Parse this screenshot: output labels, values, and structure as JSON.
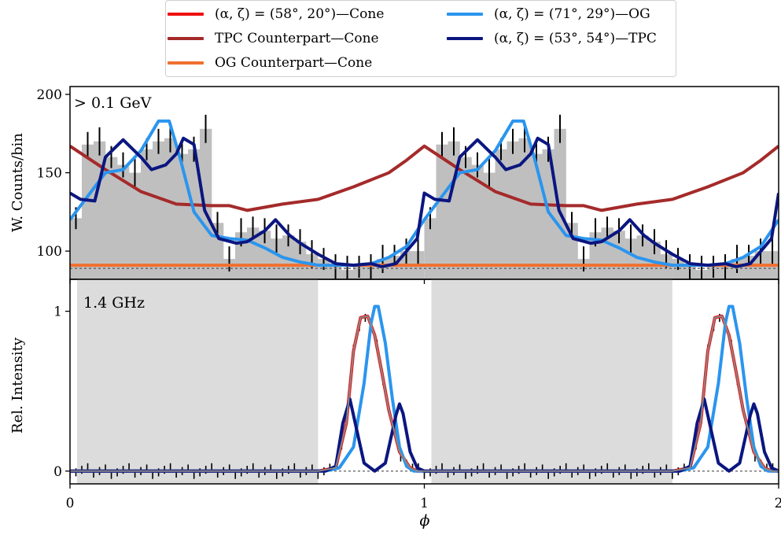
{
  "colors": {
    "cone": "#ee1111",
    "tpc_counterpart": "#a52a2a",
    "og_counterpart": "#f07030",
    "og": "#2b95ee",
    "tpc": "#0b1680",
    "histogram": "#bfbfbf",
    "shade": "#dcdcdc"
  },
  "legend": [
    {
      "label": "(α, ζ) = (58°, 20°)—Cone",
      "color": "#ee1111"
    },
    {
      "label": "(α, ζ) = (71°, 29°)—OG",
      "color": "#2b95ee"
    },
    {
      "label": "TPC Counterpart—Cone",
      "color": "#a52a2a"
    },
    {
      "label": "(α, ζ) = (53°, 54°)—TPC",
      "color": "#0b1680"
    },
    {
      "label": "OG Counterpart—Cone",
      "color": "#f07030"
    }
  ],
  "chart_data": [
    {
      "type": "bar",
      "annotation": "> 0.1 GeV",
      "ylabel": "W. Counts/bin",
      "xlim": [
        0,
        2
      ],
      "ylim": [
        82,
        205
      ],
      "yticks": [
        100,
        150,
        200
      ],
      "histogram": {
        "bin_width": 0.0333,
        "values": [
          121,
          168,
          170,
          160,
          155,
          150,
          165,
          170,
          172,
          162,
          165,
          178,
          118,
          95,
          112,
          115,
          113,
          108,
          110,
          106,
          98,
          95,
          90,
          88,
          90,
          90,
          95,
          97,
          100,
          100
        ]
      },
      "series": [
        {
          "name": "TPC Counterpart—Cone",
          "x": [
            0.0,
            0.1,
            0.2,
            0.3,
            0.4,
            0.45,
            0.5,
            0.6,
            0.7,
            0.8,
            0.9,
            0.95,
            1.0
          ],
          "y": [
            167,
            152,
            138,
            130,
            129,
            129,
            126,
            130,
            133,
            141,
            150,
            158,
            167
          ]
        },
        {
          "name": "OG Counterpart—Cone",
          "x": [
            0,
            2
          ],
          "y": [
            91,
            91
          ]
        },
        {
          "name": "(α, ζ) = (71°, 29°)—OG",
          "x": [
            0.0,
            0.05,
            0.1,
            0.15,
            0.2,
            0.25,
            0.28,
            0.31,
            0.35,
            0.4,
            0.45,
            0.5,
            0.55,
            0.6,
            0.65,
            0.7,
            0.75,
            0.8,
            0.85,
            0.9,
            0.95,
            1.0
          ],
          "y": [
            120,
            135,
            150,
            152,
            164,
            183,
            183,
            160,
            125,
            110,
            108,
            107,
            102,
            96,
            93,
            91,
            91,
            91,
            92,
            96,
            103,
            120
          ]
        },
        {
          "name": "(α, ζ) = (53°, 54°)—TPC",
          "x": [
            0.0,
            0.03,
            0.07,
            0.1,
            0.15,
            0.2,
            0.23,
            0.27,
            0.3,
            0.32,
            0.35,
            0.38,
            0.42,
            0.47,
            0.5,
            0.55,
            0.58,
            0.62,
            0.65,
            0.7,
            0.75,
            0.8,
            0.85,
            0.88,
            0.92,
            0.95,
            0.98,
            1.0
          ],
          "y": [
            137,
            133,
            132,
            160,
            171,
            160,
            152,
            155,
            162,
            172,
            168,
            126,
            108,
            105,
            106,
            113,
            120,
            110,
            105,
            98,
            92,
            91,
            92,
            90,
            92,
            100,
            108,
            137
          ]
        }
      ]
    },
    {
      "type": "line",
      "annotation": "1.4 GHz",
      "ylabel": "Rel. Intensity",
      "xlabel": "ϕ",
      "xlim": [
        0,
        2
      ],
      "ylim": [
        -0.08,
        1.2
      ],
      "xticks": [
        0,
        1,
        2
      ],
      "yticks": [
        0,
        1
      ],
      "shaded_phase_ranges": [
        [
          0.02,
          0.7
        ],
        [
          1.02,
          1.7
        ]
      ],
      "series": [
        {
          "name": "(α, ζ) = (58°, 20°)—Cone",
          "x": [
            0.0,
            0.7,
            0.75,
            0.78,
            0.8,
            0.82,
            0.84,
            0.86,
            0.88,
            0.9,
            0.93,
            0.96,
            0.98,
            1.0
          ],
          "y": [
            0,
            0,
            0.02,
            0.3,
            0.75,
            0.96,
            0.97,
            0.85,
            0.62,
            0.38,
            0.12,
            0.02,
            0,
            0
          ]
        },
        {
          "name": "(α, ζ) = (71°, 29°)—OG",
          "x": [
            0.0,
            0.72,
            0.76,
            0.8,
            0.83,
            0.85,
            0.86,
            0.87,
            0.89,
            0.91,
            0.93,
            0.95,
            0.97,
            1.0
          ],
          "y": [
            0,
            0,
            0.02,
            0.15,
            0.55,
            0.93,
            1.03,
            1.03,
            0.8,
            0.45,
            0.15,
            0.03,
            0,
            0
          ]
        },
        {
          "name": "(α, ζ) = (53°, 54°)—TPC",
          "x": [
            0.0,
            0.72,
            0.75,
            0.77,
            0.79,
            0.81,
            0.83,
            0.86,
            0.89,
            0.92,
            0.93,
            0.94,
            0.96,
            0.98,
            1.0
          ],
          "y": [
            0,
            0,
            0.03,
            0.3,
            0.45,
            0.25,
            0.05,
            0.0,
            0.05,
            0.35,
            0.42,
            0.36,
            0.12,
            0.02,
            0
          ]
        },
        {
          "name": "data",
          "x": [
            0.0,
            0.7,
            0.75,
            0.78,
            0.8,
            0.82,
            0.84,
            0.86,
            0.88,
            0.9,
            0.93,
            0.96,
            0.98,
            1.0
          ],
          "y": [
            0,
            0,
            0.02,
            0.3,
            0.75,
            0.96,
            0.97,
            0.85,
            0.62,
            0.38,
            0.12,
            0.02,
            0,
            0
          ]
        }
      ]
    }
  ]
}
